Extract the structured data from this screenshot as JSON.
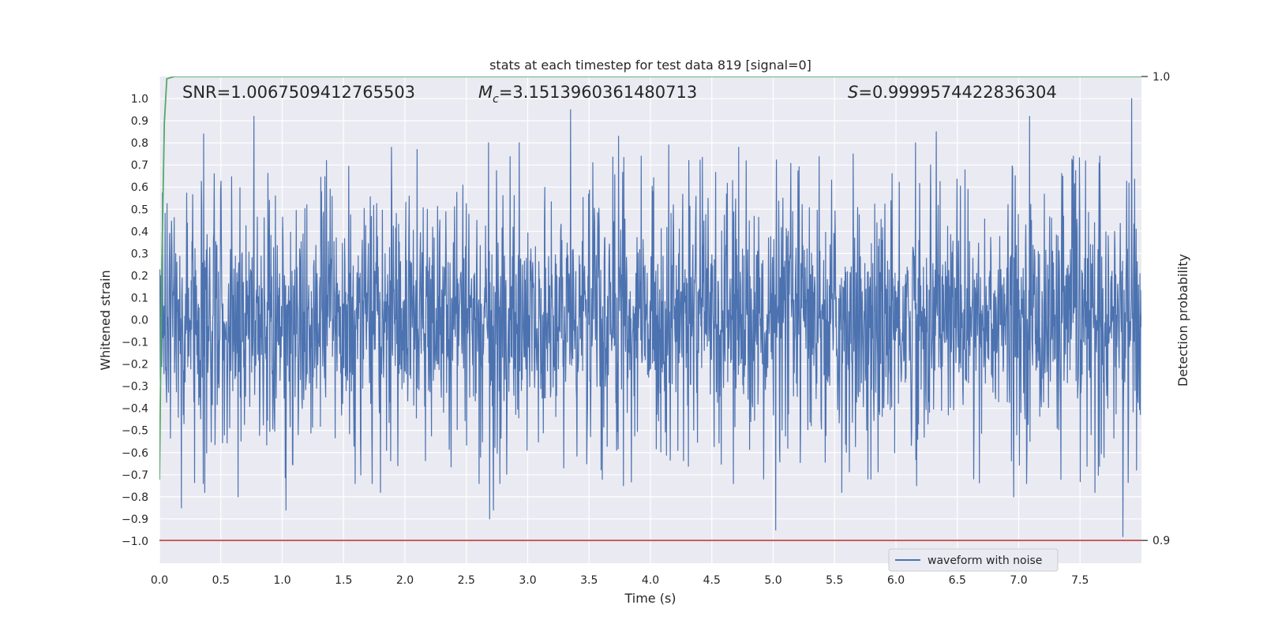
{
  "chart_data": {
    "type": "line",
    "title": "stats at each timestep for test data 819 [signal=0]",
    "xlabel": "Time (s)",
    "ylabel": "Whitened strain",
    "y2label": "Detection probability",
    "xlim": [
      0,
      8
    ],
    "ylim": [
      -1.1,
      1.1
    ],
    "y2lim": [
      0.8951,
      1.0
    ],
    "x_ticks": [
      0.0,
      0.5,
      1.0,
      1.5,
      2.0,
      2.5,
      3.0,
      3.5,
      4.0,
      4.5,
      5.0,
      5.5,
      6.0,
      6.5,
      7.0,
      7.5
    ],
    "x_tick_labels": [
      "0.0",
      "0.5",
      "1.0",
      "1.5",
      "2.0",
      "2.5",
      "3.0",
      "3.5",
      "4.0",
      "4.5",
      "5.0",
      "5.5",
      "6.0",
      "6.5",
      "7.0",
      "7.5"
    ],
    "y_ticks": [
      1.0,
      0.9,
      0.8,
      0.7,
      0.6,
      0.5,
      0.4,
      0.3,
      0.2,
      0.1,
      0.0,
      -0.1,
      -0.2,
      -0.3,
      -0.4,
      -0.5,
      -0.6,
      -0.7,
      -0.8,
      -0.9,
      -1.0
    ],
    "y_tick_labels": [
      "1.0",
      "0.9",
      "0.8",
      "0.7",
      "0.6",
      "0.5",
      "0.4",
      "0.3",
      "0.2",
      "0.1",
      "0.0",
      "−0.1",
      "−0.2",
      "−0.3",
      "−0.4",
      "−0.5",
      "−0.6",
      "−0.7",
      "−0.8",
      "−0.9",
      "−1.0"
    ],
    "y2_ticks": [
      1.0,
      0.9
    ],
    "y2_tick_labels": [
      "1.0",
      "0.9"
    ],
    "grid": true,
    "legend": {
      "entries": [
        "waveform with noise"
      ],
      "placement": "lower-right"
    },
    "annotations": {
      "snr": "SNR=1.0067509412765503",
      "mc_symbol": "M",
      "mc_subscript": "c",
      "mc_value": "=3.1513960361480713",
      "s_symbol": "S",
      "s_value": "=0.9999574422836304"
    },
    "series": [
      {
        "name": "waveform with noise",
        "axis": "left",
        "description_values": "noise waveform, amplitude mostly within ±0.5 with spikes to ±0.95",
        "peaks": [
          [
            0.36,
            0.84
          ],
          [
            0.77,
            0.92
          ],
          [
            1.36,
            0.72
          ],
          [
            1.89,
            0.78
          ],
          [
            2.1,
            0.77
          ],
          [
            2.68,
            0.8
          ],
          [
            2.93,
            0.8
          ],
          [
            3.35,
            0.95
          ],
          [
            3.74,
            0.83
          ],
          [
            4.15,
            0.79
          ],
          [
            4.72,
            0.78
          ],
          [
            5.65,
            0.75
          ],
          [
            6.16,
            0.8
          ],
          [
            6.33,
            0.85
          ],
          [
            7.09,
            0.92
          ],
          [
            7.92,
            1.0
          ]
        ],
        "troughs": [
          [
            0.18,
            -0.85
          ],
          [
            0.37,
            -0.78
          ],
          [
            0.64,
            -0.8
          ],
          [
            1.03,
            -0.86
          ],
          [
            1.8,
            -0.78
          ],
          [
            2.72,
            -0.86
          ],
          [
            2.69,
            -0.9
          ],
          [
            3.78,
            -0.75
          ],
          [
            5.02,
            -0.95
          ],
          [
            5.56,
            -0.78
          ],
          [
            6.17,
            -0.75
          ],
          [
            6.96,
            -0.8
          ],
          [
            7.62,
            -0.78
          ],
          [
            7.85,
            -0.98
          ]
        ],
        "envelope_abs_typical": 0.45,
        "color": "#4c72b0"
      },
      {
        "name": "",
        "axis": "right",
        "x": [
          0.0,
          0.02,
          0.04,
          0.06,
          0.12,
          0.2,
          8.0
        ],
        "values": [
          0.9131,
          0.96,
          0.99,
          0.9995,
          1.0,
          1.0,
          1.0
        ],
        "color": "#55a868"
      },
      {
        "name": "",
        "axis": "right",
        "x": [
          0.0,
          8.0
        ],
        "values": [
          0.9,
          0.9
        ],
        "color": "#c44e52"
      }
    ]
  }
}
